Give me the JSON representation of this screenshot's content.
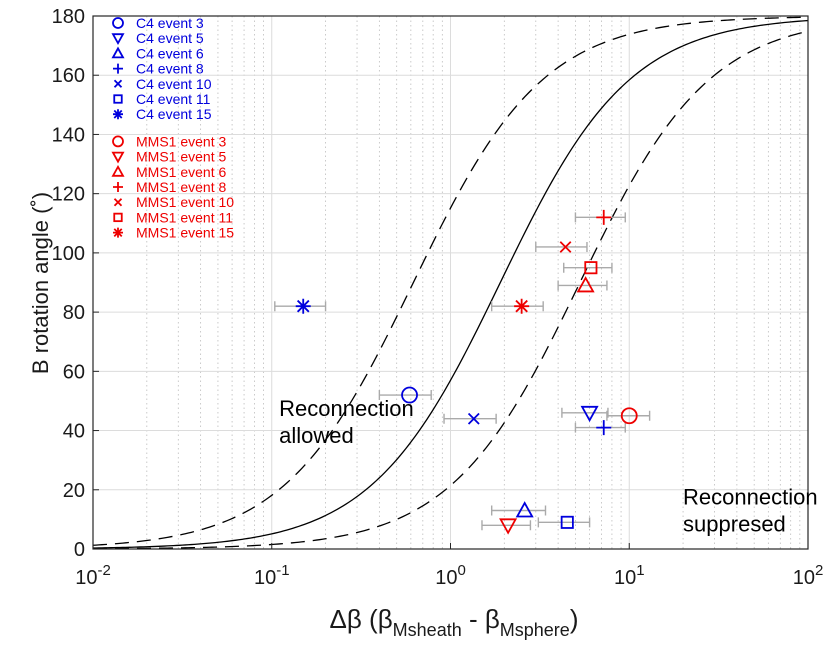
{
  "chart_data": {
    "type": "scatter",
    "title": "",
    "xscale": "log",
    "xlim": [
      0.01,
      100
    ],
    "ylim": [
      0,
      180
    ],
    "grid": true,
    "legend_placement": "top-left",
    "ylabel": "B rotation angle (˚)",
    "xlabel": {
      "prefix": "Δβ (β",
      "sub1": "Msheath",
      "middle": " - β",
      "sub2": "Msphere",
      "suffix": ")"
    },
    "x_ticks": [
      {
        "value": 0.01,
        "base": "10",
        "exp": "-2"
      },
      {
        "value": 0.1,
        "base": "10",
        "exp": "-1"
      },
      {
        "value": 1,
        "base": "10",
        "exp": "0"
      },
      {
        "value": 10,
        "base": "10",
        "exp": "1"
      },
      {
        "value": 100,
        "base": "10",
        "exp": "2"
      }
    ],
    "y_ticks": [
      "0",
      "20",
      "40",
      "60",
      "80",
      "100",
      "120",
      "140",
      "160",
      "180"
    ],
    "colors": {
      "C4": "#0000dd",
      "MMS1": "#ee0000",
      "errorbar": "#aaaaaa",
      "curve": "#000000"
    },
    "series": [
      {
        "name": "C4",
        "color": "#0000dd",
        "points": [
          {
            "label": "C4 event 3",
            "marker": "o",
            "x": 0.59,
            "y": 52,
            "xerr": [
              0.4,
              0.78
            ]
          },
          {
            "label": "C4 event 5",
            "marker": "v",
            "x": 6.0,
            "y": 46,
            "xerr": [
              4.2,
              7.6
            ]
          },
          {
            "label": "C4 event 6",
            "marker": "^",
            "x": 2.6,
            "y": 13,
            "xerr": [
              1.7,
              3.4
            ]
          },
          {
            "label": "C4 event 8",
            "marker": "+",
            "x": 7.2,
            "y": 41,
            "xerr": [
              5.0,
              9.5
            ]
          },
          {
            "label": "C4 event 10",
            "marker": "x",
            "x": 1.35,
            "y": 44,
            "xerr": [
              0.92,
              1.8
            ]
          },
          {
            "label": "C4 event 11",
            "marker": "s",
            "x": 4.5,
            "y": 9,
            "xerr": [
              3.1,
              6.0
            ]
          },
          {
            "label": "C4 event 15",
            "marker": "*",
            "x": 0.15,
            "y": 82,
            "xerr": [
              0.104,
              0.2
            ]
          }
        ]
      },
      {
        "name": "MMS1",
        "color": "#ee0000",
        "points": [
          {
            "label": "MMS1 event 3",
            "marker": "o",
            "x": 10.0,
            "y": 45,
            "xerr": [
              7.5,
              13.0
            ]
          },
          {
            "label": "MMS1 event 5",
            "marker": "v",
            "x": 2.1,
            "y": 8,
            "xerr": [
              1.5,
              2.8
            ]
          },
          {
            "label": "MMS1 event 6",
            "marker": "^",
            "x": 5.7,
            "y": 89,
            "xerr": [
              4.0,
              7.5
            ]
          },
          {
            "label": "MMS1 event 8",
            "marker": "+",
            "x": 7.2,
            "y": 112,
            "xerr": [
              5.0,
              9.5
            ]
          },
          {
            "label": "MMS1 event 10",
            "marker": "x",
            "x": 4.4,
            "y": 102,
            "xerr": [
              3.0,
              5.8
            ]
          },
          {
            "label": "MMS1 event 11",
            "marker": "s",
            "x": 6.1,
            "y": 95,
            "xerr": [
              4.3,
              8.0
            ]
          },
          {
            "label": "MMS1 event 15",
            "marker": "*",
            "x": 2.5,
            "y": 82,
            "xerr": [
              1.7,
              3.3
            ]
          }
        ]
      }
    ],
    "curves": [
      {
        "style": "solid",
        "x50": 1.9
      },
      {
        "style": "dashed",
        "x50": 0.62
      },
      {
        "style": "dashed",
        "x50": 5.3
      }
    ],
    "annotations": [
      {
        "lines": [
          "Reconnection",
          "allowed"
        ],
        "x": 0.11,
        "y": 45
      },
      {
        "lines": [
          "Reconnection",
          "suppresed"
        ],
        "x": 20,
        "y": 15
      }
    ]
  }
}
